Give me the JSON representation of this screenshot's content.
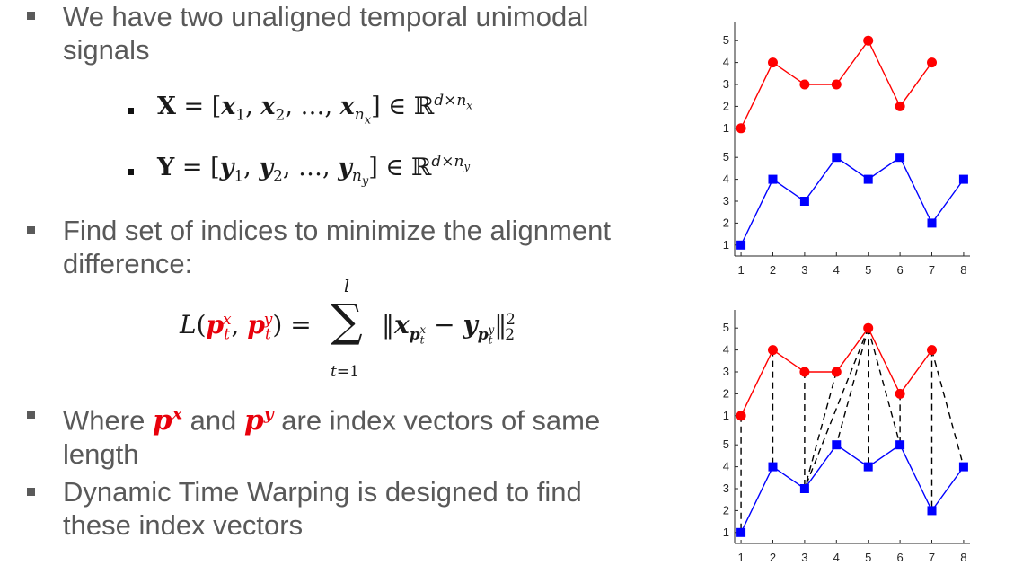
{
  "bullets": [
    {
      "line1": "We have two unaligned temporal unimodal",
      "line2": "signals"
    },
    {
      "line1": "Find set of indices to minimize the alignment",
      "line2": "difference:"
    },
    {
      "pre": "Where",
      "mid": "and",
      "post": "are index vectors of same",
      "line2": "length"
    },
    {
      "line1": "Dynamic Time Warping is designed to find",
      "line2": "these index vectors"
    }
  ],
  "math": {
    "x_def": {
      "lhs": "X",
      "open": "= [",
      "items": "x",
      "sep1": "1",
      "sep2": "2",
      "dots": "…",
      "last": "n",
      "lastsub": "x",
      "close": "] ∈ ℝ",
      "sup": "d×n",
      "supsub": "x"
    },
    "y_def": {
      "lhs": "Y",
      "items": "y",
      "last": "n",
      "lastsub": "y",
      "sup": "d×n",
      "supsub": "y"
    },
    "loss": {
      "L": "L(",
      "p": "p",
      "t": "t",
      "x": "x",
      "y": "y",
      "close": ") =",
      "sum": "∑",
      "top": "l",
      "bottom": "t=1",
      "minus": "−",
      "two": "2"
    },
    "px": "p",
    "pxsup": "x",
    "py": "p",
    "pysup": "y"
  },
  "chart_data": [
    {
      "type": "line",
      "title": "",
      "x": [
        1,
        2,
        3,
        4,
        5,
        6,
        7,
        8
      ],
      "xlim": [
        0.8,
        8.2
      ],
      "series": [
        {
          "color": "#ff0000",
          "marker": "circle",
          "x": [
            1,
            2,
            3,
            4,
            5,
            6,
            7
          ],
          "values": [
            1,
            4,
            3,
            3,
            5,
            2,
            4
          ]
        },
        {
          "color": "#0000ff",
          "marker": "square",
          "x": [
            1,
            2,
            3,
            4,
            5,
            6,
            7,
            8
          ],
          "values": [
            1,
            4,
            3,
            5,
            4,
            5,
            2,
            4
          ]
        }
      ],
      "yticks_top": [
        "1",
        "2",
        "3",
        "4",
        "5"
      ],
      "yticks_bottom": [
        "1",
        "2",
        "3",
        "4",
        "5"
      ],
      "xticks": [
        "1",
        "2",
        "3",
        "4",
        "5",
        "6",
        "7",
        "8"
      ],
      "alignment": []
    },
    {
      "type": "line",
      "title": "",
      "x": [
        1,
        2,
        3,
        4,
        5,
        6,
        7,
        8
      ],
      "xlim": [
        0.8,
        8.2
      ],
      "series": [
        {
          "color": "#ff0000",
          "marker": "circle",
          "x": [
            1,
            2,
            3,
            4,
            5,
            6,
            7
          ],
          "values": [
            1,
            4,
            3,
            3,
            5,
            2,
            4
          ]
        },
        {
          "color": "#0000ff",
          "marker": "square",
          "x": [
            1,
            2,
            3,
            4,
            5,
            6,
            7,
            8
          ],
          "values": [
            1,
            4,
            3,
            5,
            4,
            5,
            2,
            4
          ]
        }
      ],
      "yticks_top": [
        "1",
        "2",
        "3",
        "4",
        "5"
      ],
      "yticks_bottom": [
        "1",
        "2",
        "3",
        "4",
        "5"
      ],
      "xticks": [
        "1",
        "2",
        "3",
        "4",
        "5",
        "6",
        "7",
        "8"
      ],
      "alignment": [
        [
          1,
          1
        ],
        [
          2,
          2
        ],
        [
          3,
          3
        ],
        [
          4,
          3
        ],
        [
          5,
          3
        ],
        [
          5,
          4
        ],
        [
          5,
          5
        ],
        [
          5,
          6
        ],
        [
          6,
          6
        ],
        [
          7,
          7
        ],
        [
          7,
          8
        ]
      ]
    }
  ]
}
